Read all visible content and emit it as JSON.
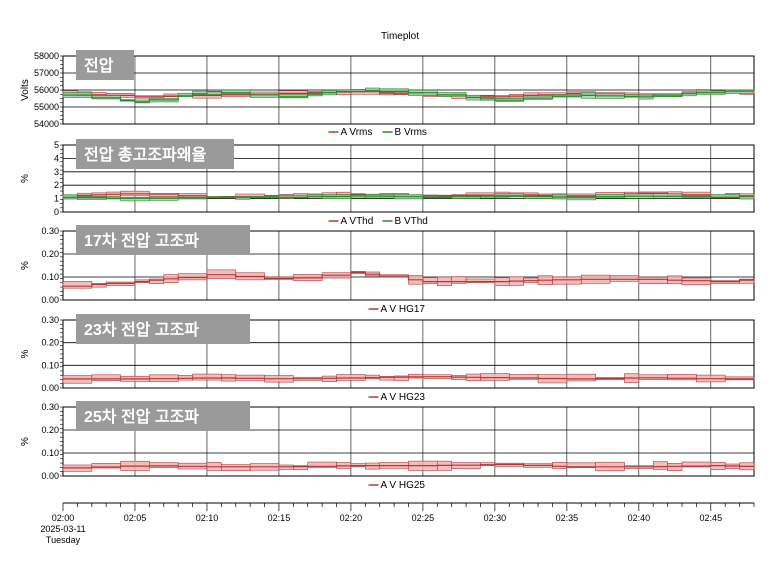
{
  "title": "Timeplot",
  "x_axis": {
    "ticks": [
      "02:00",
      "02:05",
      "02:10",
      "02:15",
      "02:20",
      "02:25",
      "02:30",
      "02:35",
      "02:40",
      "02:45"
    ],
    "date": "2025-03-11",
    "weekday": "Tuesday"
  },
  "colors": {
    "series_a": "#b03a3a",
    "series_b": "#2a8a2a",
    "fill_a": "#f4b0b0",
    "fill_b": "#9fcfb0",
    "grid": "#000000",
    "badge": "#9a9a9a"
  },
  "chart_data": [
    {
      "type": "line",
      "badge": "전압",
      "ylabel": "Volts",
      "ylim": [
        54000,
        58000
      ],
      "yticks": [
        "58000",
        "57000",
        "56000",
        "55000",
        "54000"
      ],
      "legend": [
        "A Vrms",
        "B Vrms"
      ],
      "series": [
        {
          "name": "A Vrms",
          "x": [
            "02:00",
            "02:05",
            "02:10",
            "02:15",
            "02:20",
            "02:25",
            "02:30",
            "02:35",
            "02:40",
            "02:45",
            "02:48"
          ],
          "values": [
            55800,
            55600,
            55700,
            55800,
            55900,
            55700,
            55600,
            55800,
            55700,
            55900,
            55900
          ]
        },
        {
          "name": "B Vrms",
          "x": [
            "02:00",
            "02:05",
            "02:10",
            "02:15",
            "02:20",
            "02:25",
            "02:30",
            "02:35",
            "02:40",
            "02:45",
            "02:48"
          ],
          "values": [
            55700,
            55300,
            55900,
            55600,
            56000,
            55800,
            55400,
            55700,
            55600,
            55900,
            56000
          ]
        }
      ]
    },
    {
      "type": "line",
      "badge": "전압 총고조파왜율",
      "ylabel": "%",
      "ylim": [
        0,
        5
      ],
      "yticks": [
        "5",
        "4",
        "3",
        "2",
        "1",
        "0"
      ],
      "legend": [
        "A VThd",
        "B VThd"
      ],
      "series": [
        {
          "name": "A VThd",
          "x": [
            "02:00",
            "02:05",
            "02:10",
            "02:15",
            "02:20",
            "02:25",
            "02:30",
            "02:35",
            "02:40",
            "02:45",
            "02:48"
          ],
          "values": [
            1.2,
            1.4,
            1.1,
            1.2,
            1.3,
            1.2,
            1.3,
            1.2,
            1.4,
            1.2,
            1.2
          ]
        },
        {
          "name": "B VThd",
          "x": [
            "02:00",
            "02:05",
            "02:10",
            "02:15",
            "02:20",
            "02:25",
            "02:30",
            "02:35",
            "02:40",
            "02:45",
            "02:48"
          ],
          "values": [
            1.1,
            1.0,
            1.1,
            1.1,
            1.2,
            1.1,
            1.2,
            1.1,
            1.2,
            1.1,
            1.2
          ]
        }
      ]
    },
    {
      "type": "area",
      "badge": "17차 전압 고조파",
      "ylabel": "%",
      "ylim": [
        0,
        0.3
      ],
      "yticks": [
        "0.30",
        "0.20",
        "0.10",
        "0.00"
      ],
      "legend": [
        "A V HG17"
      ],
      "series": [
        {
          "name": "A V HG17",
          "x": [
            "02:00",
            "02:05",
            "02:10",
            "02:15",
            "02:20",
            "02:25",
            "02:30",
            "02:35",
            "02:40",
            "02:45",
            "02:48"
          ],
          "values": [
            0.06,
            0.08,
            0.11,
            0.09,
            0.12,
            0.08,
            0.08,
            0.09,
            0.09,
            0.08,
            0.09
          ]
        }
      ]
    },
    {
      "type": "area",
      "badge": "23차 전압 고조파",
      "ylabel": "%",
      "ylim": [
        0,
        0.3
      ],
      "yticks": [
        "0.30",
        "0.20",
        "0.10",
        "0.00"
      ],
      "legend": [
        "A V HG23"
      ],
      "series": [
        {
          "name": "A V HG23",
          "x": [
            "02:00",
            "02:05",
            "02:10",
            "02:15",
            "02:20",
            "02:25",
            "02:30",
            "02:35",
            "02:40",
            "02:45",
            "02:48"
          ],
          "values": [
            0.04,
            0.04,
            0.045,
            0.04,
            0.045,
            0.05,
            0.045,
            0.04,
            0.045,
            0.04,
            0.04
          ]
        }
      ]
    },
    {
      "type": "area",
      "badge": "25차 전압 고조파",
      "ylabel": "%",
      "ylim": [
        0,
        0.3
      ],
      "yticks": [
        "0.30",
        "0.20",
        "0.10",
        "0.00"
      ],
      "legend": [
        "A V HG25"
      ],
      "series": [
        {
          "name": "A V HG25",
          "x": [
            "02:00",
            "02:05",
            "02:10",
            "02:15",
            "02:20",
            "02:25",
            "02:30",
            "02:35",
            "02:40",
            "02:45",
            "02:48"
          ],
          "values": [
            0.035,
            0.045,
            0.04,
            0.04,
            0.045,
            0.045,
            0.05,
            0.04,
            0.04,
            0.045,
            0.04
          ]
        }
      ]
    }
  ]
}
